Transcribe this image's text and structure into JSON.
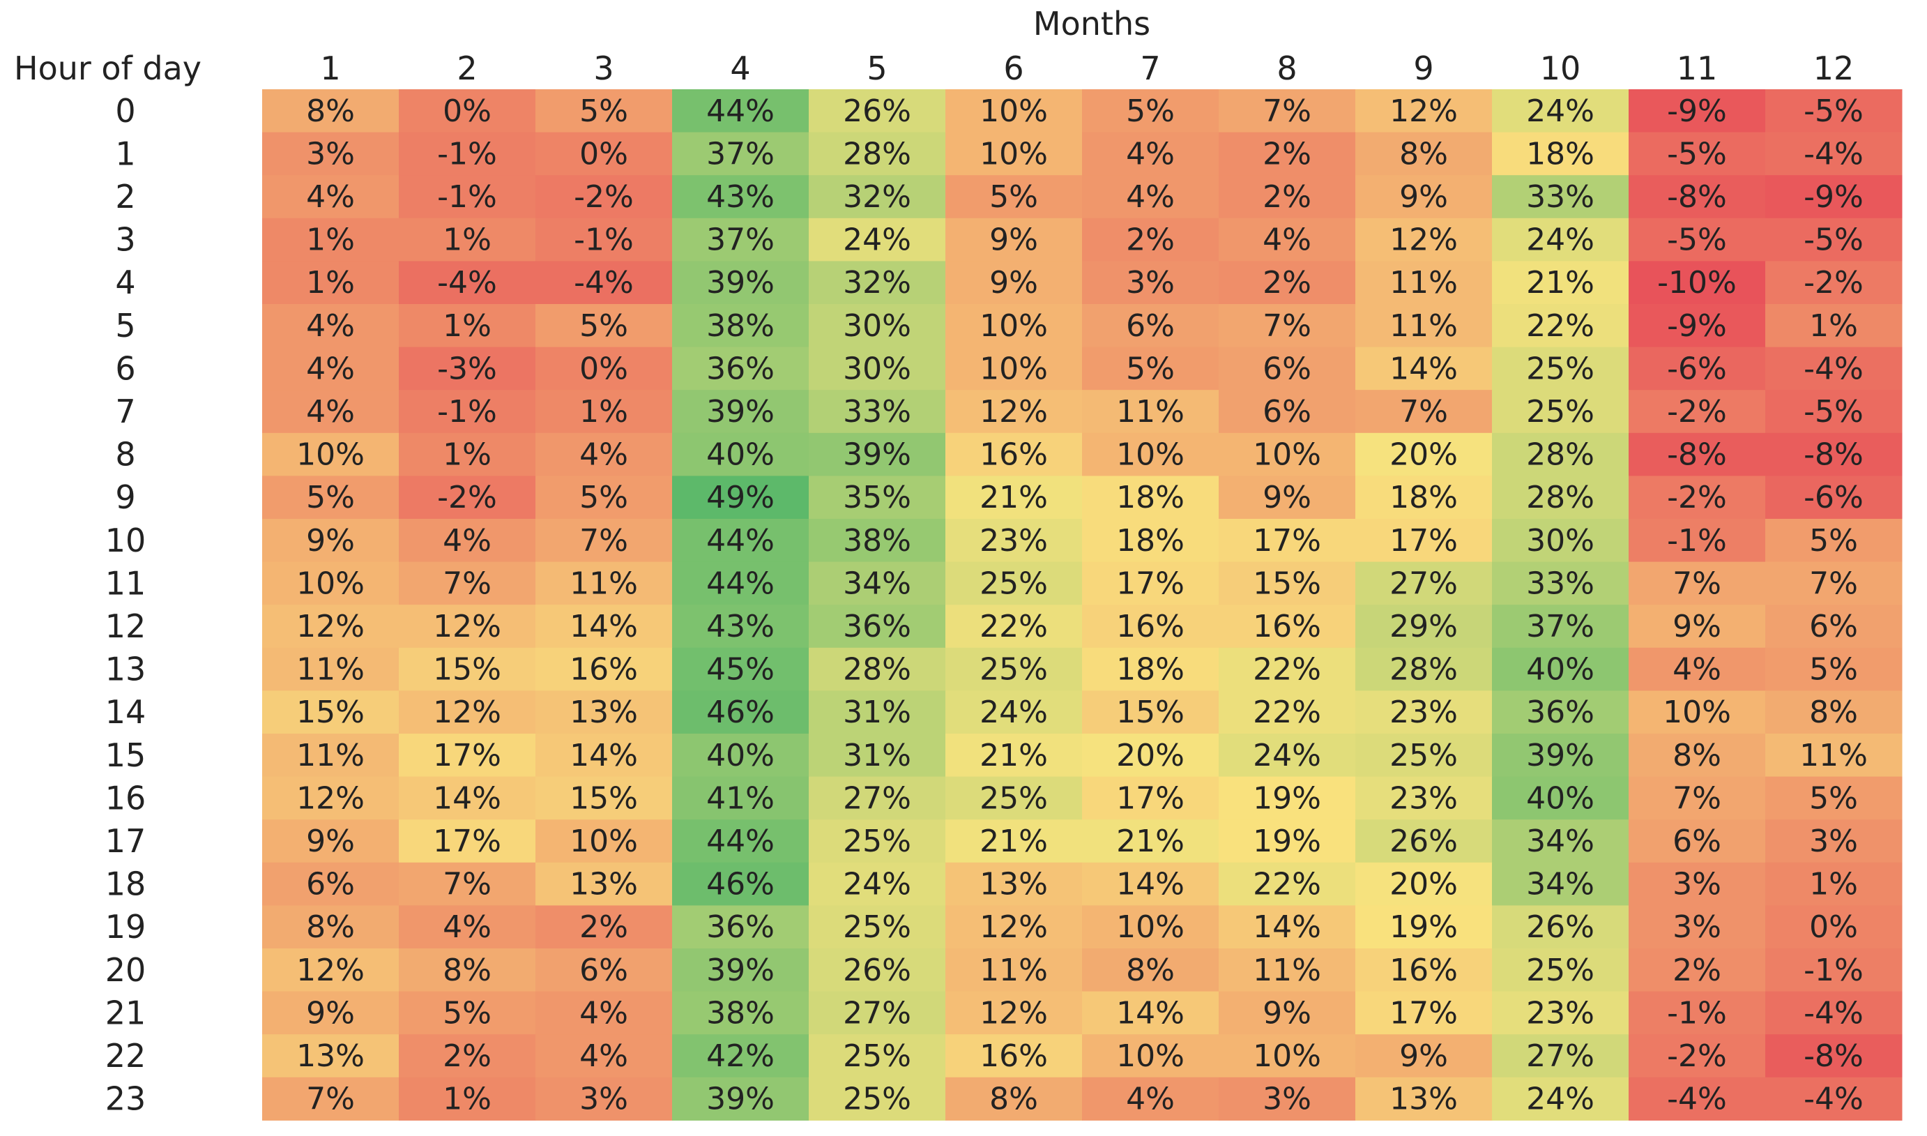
{
  "chart_data": {
    "type": "heatmap",
    "title": "",
    "xlabel": "Months",
    "ylabel": "Hour of day",
    "x_categories": [
      "1",
      "2",
      "3",
      "4",
      "5",
      "6",
      "7",
      "8",
      "9",
      "10",
      "11",
      "12"
    ],
    "y_categories": [
      "0",
      "1",
      "2",
      "3",
      "4",
      "5",
      "6",
      "7",
      "8",
      "9",
      "10",
      "11",
      "12",
      "13",
      "14",
      "15",
      "16",
      "17",
      "18",
      "19",
      "20",
      "21",
      "22",
      "23"
    ],
    "value_format": "percent",
    "color_scale": {
      "low": "#e8535a",
      "mid": "#f9e37e",
      "high": "#5db96a"
    },
    "values": [
      [
        8,
        0,
        5,
        44,
        26,
        10,
        5,
        7,
        12,
        24,
        -9,
        -5
      ],
      [
        3,
        -1,
        0,
        37,
        28,
        10,
        4,
        2,
        8,
        18,
        -5,
        -4
      ],
      [
        4,
        -1,
        -2,
        43,
        32,
        5,
        4,
        2,
        9,
        33,
        -8,
        -9
      ],
      [
        1,
        1,
        -1,
        37,
        24,
        9,
        2,
        4,
        12,
        24,
        -5,
        -5
      ],
      [
        1,
        -4,
        -4,
        39,
        32,
        9,
        3,
        2,
        11,
        21,
        -10,
        -2
      ],
      [
        4,
        1,
        5,
        38,
        30,
        10,
        6,
        7,
        11,
        22,
        -9,
        1
      ],
      [
        4,
        -3,
        0,
        36,
        30,
        10,
        5,
        6,
        14,
        25,
        -6,
        -4
      ],
      [
        4,
        -1,
        1,
        39,
        33,
        12,
        11,
        6,
        7,
        25,
        -2,
        -5
      ],
      [
        10,
        1,
        4,
        40,
        39,
        16,
        10,
        10,
        20,
        28,
        -8,
        -8
      ],
      [
        5,
        -2,
        5,
        49,
        35,
        21,
        18,
        9,
        18,
        28,
        -2,
        -6
      ],
      [
        9,
        4,
        7,
        44,
        38,
        23,
        18,
        17,
        17,
        30,
        -1,
        5
      ],
      [
        10,
        7,
        11,
        44,
        34,
        25,
        17,
        15,
        27,
        33,
        7,
        7
      ],
      [
        12,
        12,
        14,
        43,
        36,
        22,
        16,
        16,
        29,
        37,
        9,
        6
      ],
      [
        11,
        15,
        16,
        45,
        28,
        25,
        18,
        22,
        28,
        40,
        4,
        5
      ],
      [
        15,
        12,
        13,
        46,
        31,
        24,
        15,
        22,
        23,
        36,
        10,
        8
      ],
      [
        11,
        17,
        14,
        40,
        31,
        21,
        20,
        24,
        25,
        39,
        8,
        11
      ],
      [
        12,
        14,
        15,
        41,
        27,
        25,
        17,
        19,
        23,
        40,
        7,
        5
      ],
      [
        9,
        17,
        10,
        44,
        25,
        21,
        21,
        19,
        26,
        34,
        6,
        3
      ],
      [
        6,
        7,
        13,
        46,
        24,
        13,
        14,
        22,
        20,
        34,
        3,
        1
      ],
      [
        8,
        4,
        2,
        36,
        25,
        12,
        10,
        14,
        19,
        26,
        3,
        0
      ],
      [
        12,
        8,
        6,
        39,
        26,
        11,
        8,
        11,
        16,
        25,
        2,
        -1
      ],
      [
        9,
        5,
        4,
        38,
        27,
        12,
        14,
        9,
        17,
        23,
        -1,
        -4
      ],
      [
        13,
        2,
        4,
        42,
        25,
        16,
        10,
        10,
        9,
        27,
        -2,
        -8
      ],
      [
        7,
        1,
        3,
        39,
        25,
        8,
        4,
        3,
        13,
        24,
        -4,
        -4
      ]
    ]
  }
}
